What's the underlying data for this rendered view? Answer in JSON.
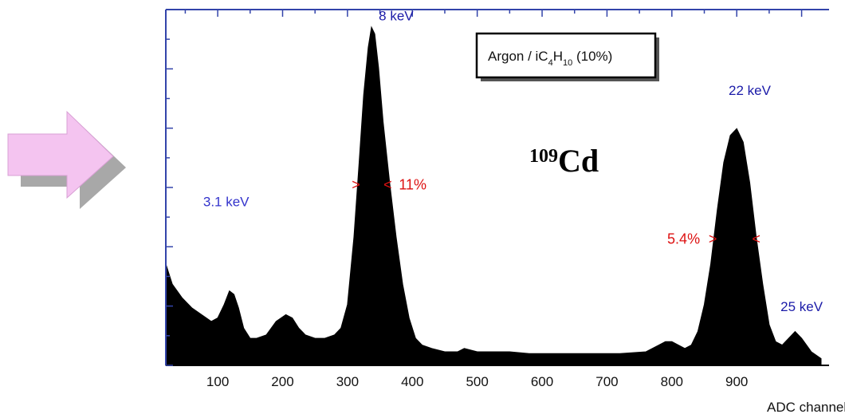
{
  "chart_data": {
    "type": "area",
    "xlabel": "ADC channel",
    "ylabel": "",
    "xlim": [
      20,
      1030
    ],
    "ylim": [
      0,
      100
    ],
    "x_ticks": [
      100,
      200,
      300,
      400,
      500,
      600,
      700,
      800,
      900
    ],
    "x_tick_labels": [
      "100",
      "200",
      "300",
      "400",
      "500",
      "600",
      "700",
      "800",
      "900"
    ],
    "series": [
      {
        "x": [
          20,
          30,
          45,
          60,
          75,
          90,
          100,
          110,
          118,
          125,
          132,
          140,
          150,
          160,
          175,
          190,
          205,
          215,
          225,
          235,
          250,
          265,
          280,
          290,
          300,
          310,
          318,
          325,
          332,
          337,
          342,
          348,
          355,
          365,
          375,
          385,
          395,
          405,
          415,
          430,
          450,
          470,
          480,
          500,
          520,
          550,
          580,
          600,
          640,
          680,
          720,
          760,
          780,
          790,
          800,
          810,
          820,
          830,
          840,
          850,
          860,
          870,
          880,
          890,
          900,
          910,
          920,
          930,
          940,
          950,
          960,
          970,
          980,
          990,
          1000,
          1015,
          1030
        ],
        "y": [
          30,
          24,
          20,
          17,
          15,
          13,
          14,
          18,
          22,
          21,
          17,
          11,
          8,
          8,
          9,
          13,
          15,
          14,
          11,
          9,
          8,
          8,
          9,
          11,
          18,
          38,
          60,
          80,
          94,
          100,
          98,
          88,
          72,
          54,
          38,
          24,
          14,
          8,
          6,
          5,
          4,
          4,
          5,
          4,
          4,
          4,
          3.5,
          3.5,
          3.5,
          3.5,
          3.5,
          4,
          6,
          7,
          7,
          6,
          5,
          6,
          10,
          18,
          30,
          46,
          60,
          68,
          70,
          66,
          54,
          38,
          24,
          12,
          7,
          6,
          8,
          10,
          8,
          4,
          2
        ]
      }
    ],
    "peak_labels": [
      {
        "text": "3.1 keV",
        "x": 113,
        "y": 47,
        "color": "#3333cc"
      },
      {
        "text": "8 keV",
        "x": 375,
        "y": 102,
        "color": "#1a1aa8"
      },
      {
        "text": "22 keV",
        "x": 920,
        "y": 80,
        "color": "#1a1aa8"
      },
      {
        "text": "25 keV",
        "x": 1000,
        "y": 16,
        "color": "#1a1aa8"
      }
    ],
    "fwhm_annotations": [
      {
        "left": ">",
        "right": "<",
        "text": "11%",
        "x_left": 313,
        "x_right": 362,
        "y": 52,
        "text_side": "right",
        "color": "#dd1111"
      },
      {
        "left": ">",
        "right": "<",
        "text": "5.4%",
        "x_left": 863,
        "x_right": 930,
        "y": 36,
        "text_side": "left",
        "color": "#dd1111"
      }
    ],
    "legend": {
      "text": "Argon / iC4H10 (10%)",
      "prefix": "Argon / iC",
      "sub1": "4",
      "mid": "H",
      "sub2": "10",
      "suffix": " (10%)",
      "color": "#118811",
      "placement": "top-right"
    },
    "isotope": {
      "mass": "109",
      "symbol": "Cd"
    },
    "fill_color": "#000000",
    "axis_color": "#3344aa"
  }
}
